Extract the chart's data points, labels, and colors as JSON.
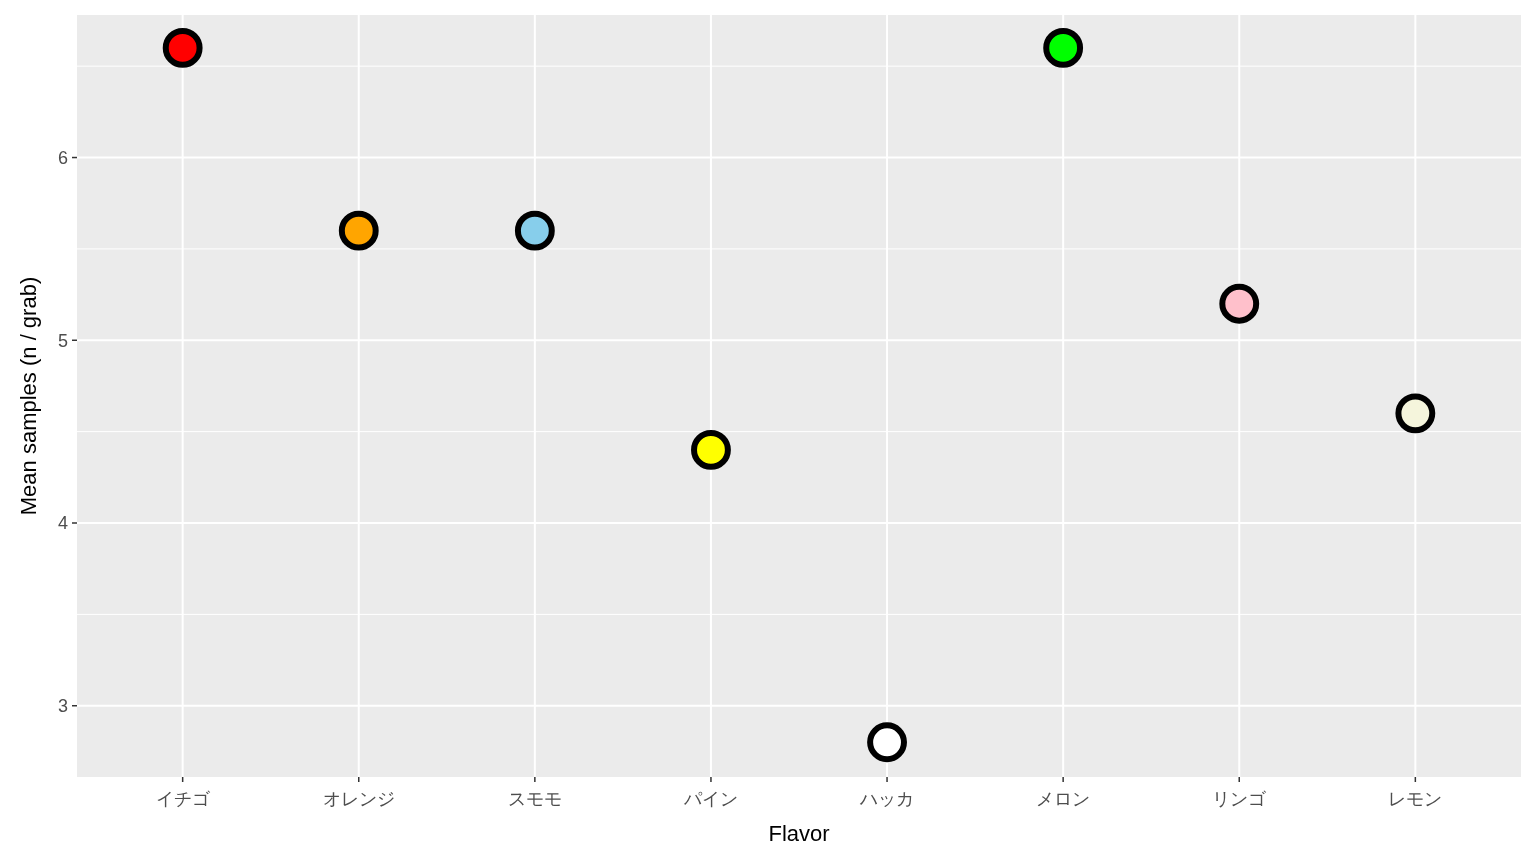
{
  "chart_data": {
    "type": "scatter",
    "xlabel": "Flavor",
    "ylabel": "Mean samples (n / grab)",
    "categories": [
      "イチゴ",
      "オレンジ",
      "スモモ",
      "パイン",
      "ハッカ",
      "メロン",
      "リンゴ",
      "レモン"
    ],
    "values": [
      6.6,
      5.6,
      5.6,
      4.4,
      2.8,
      6.6,
      5.2,
      4.6
    ],
    "colors": [
      "#ff0000",
      "#ffa500",
      "#87ceeb",
      "#ffff00",
      "#ffffff",
      "#00ff00",
      "#ffc0cb",
      "#f5f5dc"
    ],
    "ylim": [
      2.61,
      6.78
    ],
    "yticks": [
      3,
      4,
      5,
      6
    ],
    "grid": true,
    "marker": "circle"
  }
}
